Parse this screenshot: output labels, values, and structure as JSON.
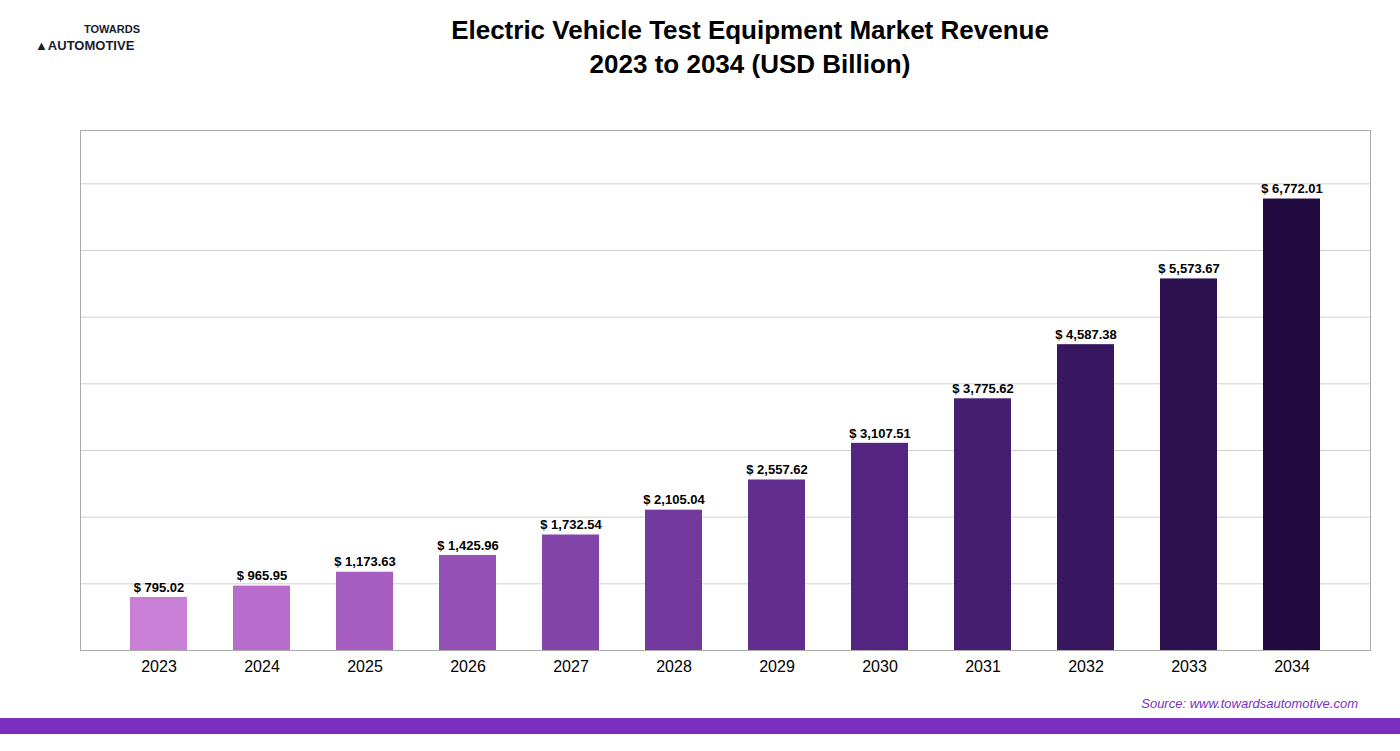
{
  "chart_data": {
    "type": "bar",
    "title": "Electric Vehicle Test Equipment Market Revenue\n2023 to 2034 (USD Billion)",
    "categories": [
      "2023",
      "2024",
      "2025",
      "2026",
      "2027",
      "2028",
      "2029",
      "2030",
      "2031",
      "2032",
      "2033",
      "2034"
    ],
    "values": [
      795.02,
      965.95,
      1173.63,
      1425.96,
      1732.54,
      2105.04,
      2557.62,
      3107.51,
      3775.62,
      4587.38,
      5573.67,
      6772.01
    ],
    "value_labels": [
      "$ 795.02",
      "$ 965.95",
      "$ 1,173.63",
      "$ 1,425.96",
      "$ 1,732.54",
      "$ 2,105.04",
      "$ 2,557.62",
      "$ 3,107.51",
      "$ 3,775.62",
      "$ 4,587.38",
      "$ 5,573.67",
      "$ 6,772.01"
    ],
    "colors": [
      "#c97fd6",
      "#b86dcc",
      "#a55dbf",
      "#9450b5",
      "#8345aa",
      "#723a9e",
      "#612e90",
      "#532480",
      "#451e70",
      "#381660",
      "#2c1050",
      "#200a40"
    ],
    "ylim": [
      0,
      7800
    ],
    "yticks": [
      0,
      1000,
      2000,
      3000,
      4000,
      5000,
      6000,
      7000
    ],
    "grid": true,
    "tick_labels": "x",
    "data_labels": true,
    "annotations": [
      "TOWARDS",
      "▲AUTOMOTIVE",
      "Source: www.towardsautomotive.com"
    ]
  }
}
